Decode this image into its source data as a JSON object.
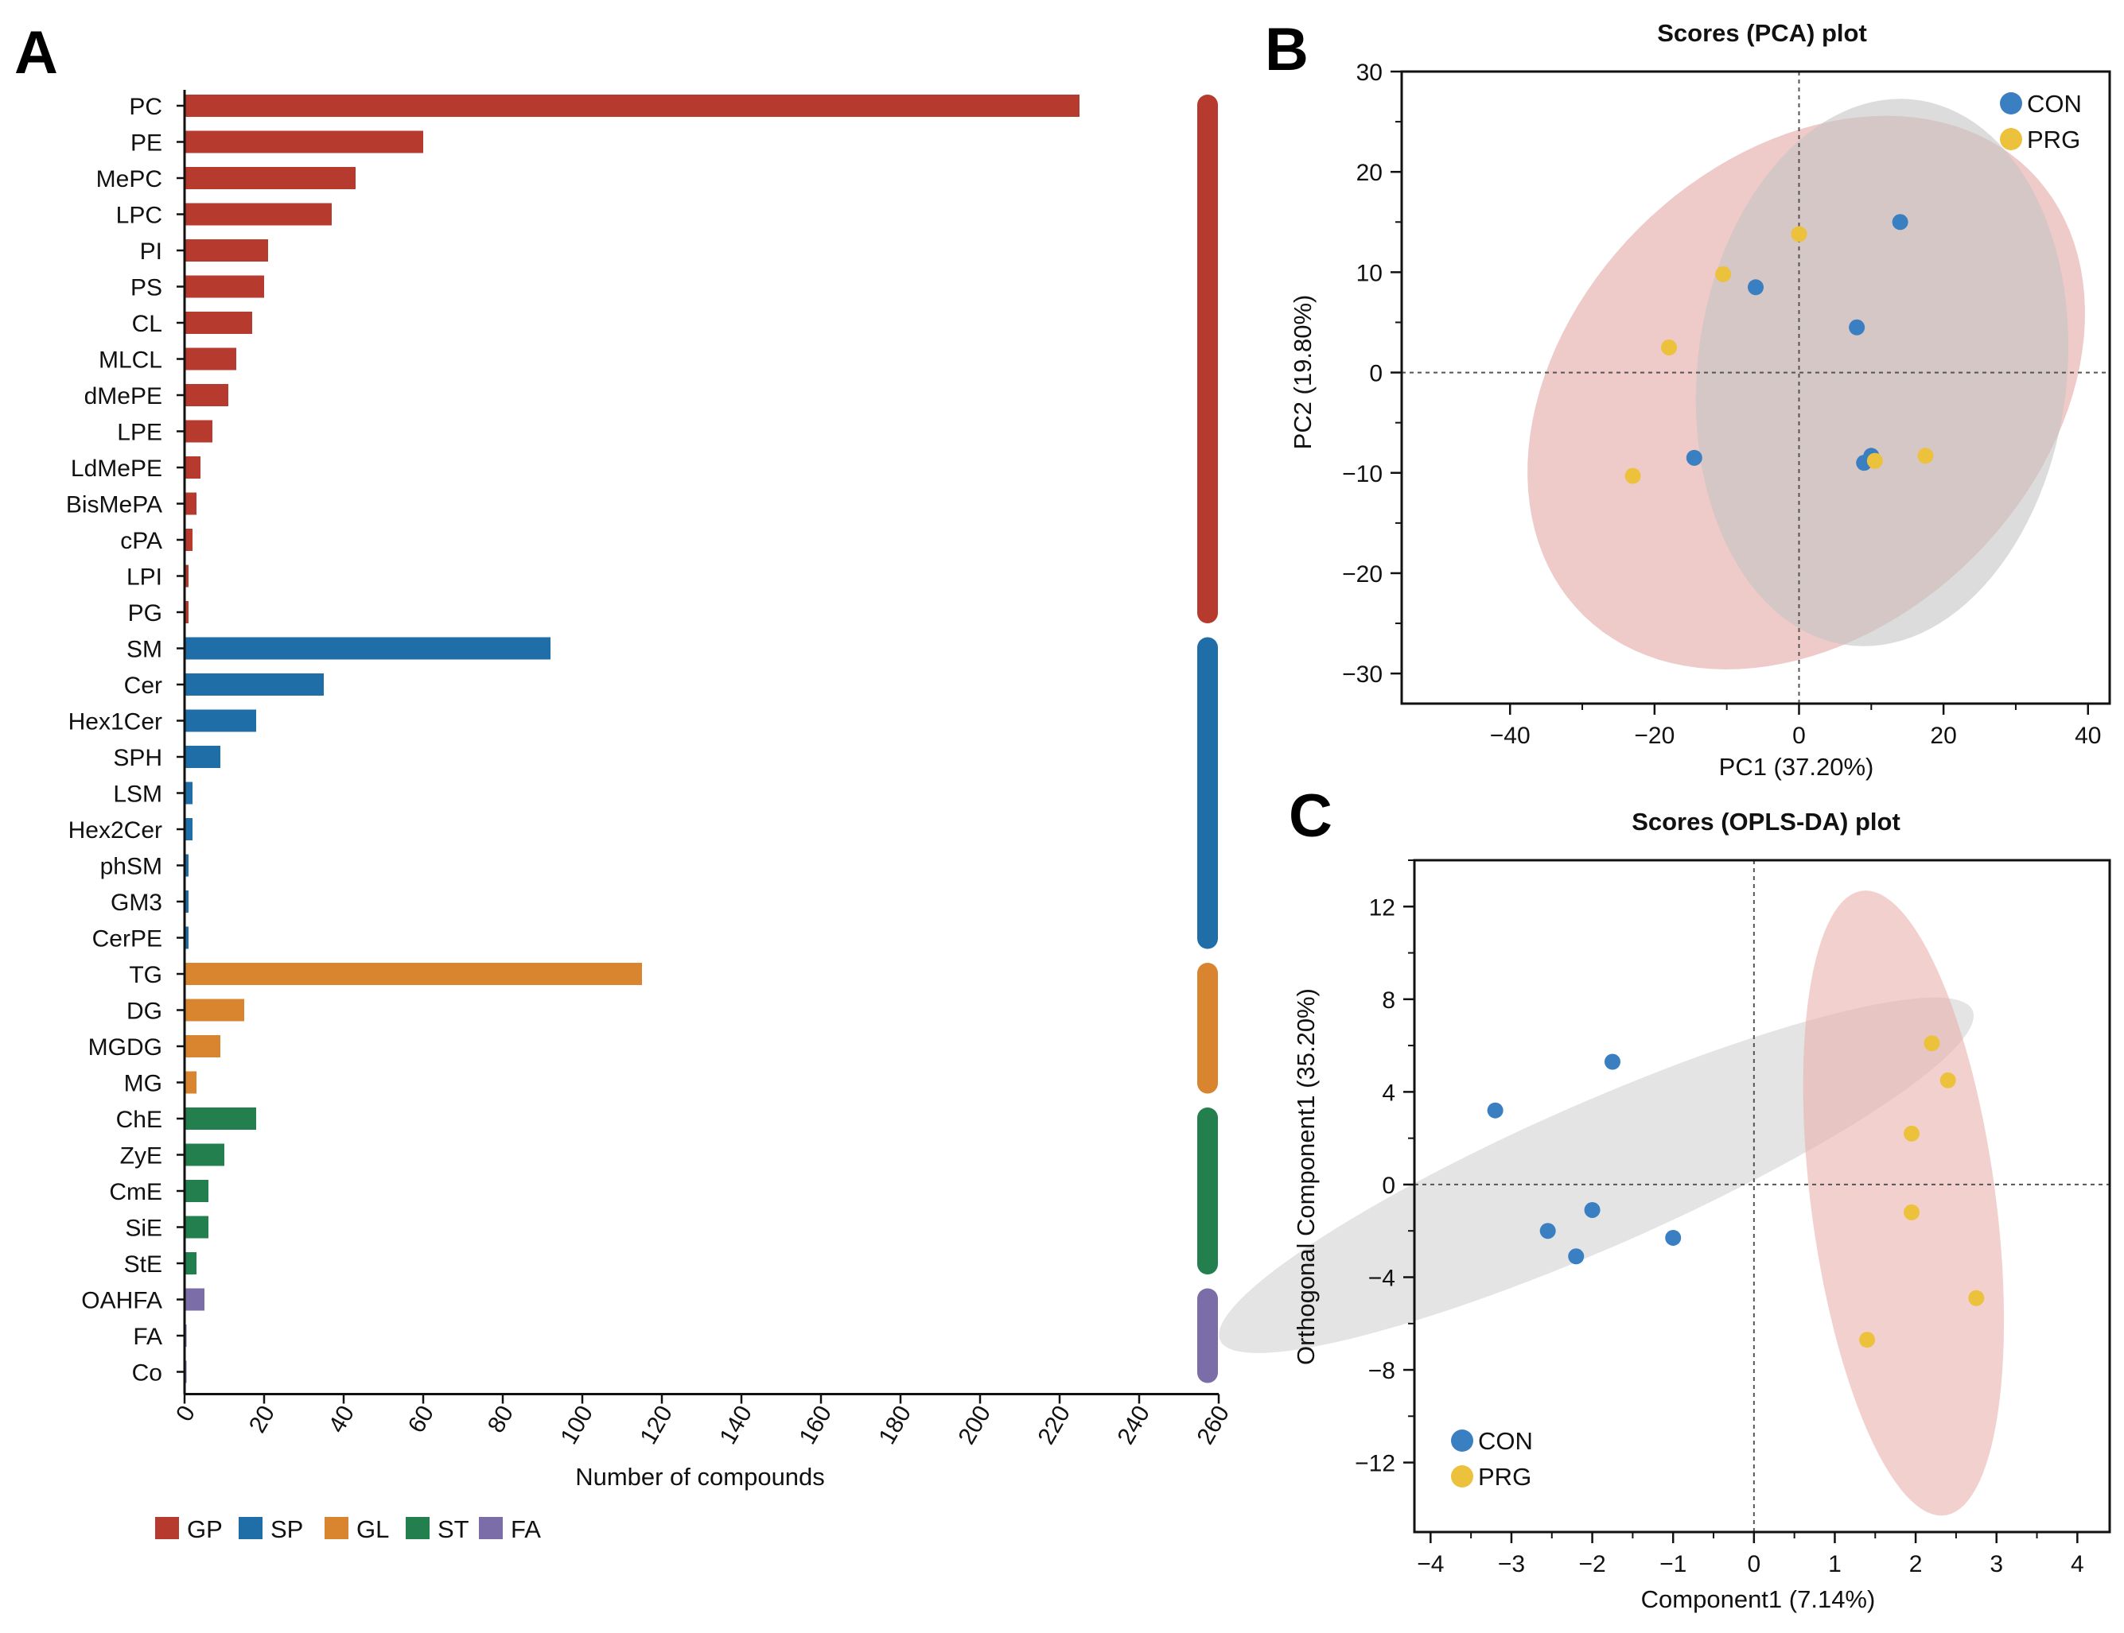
{
  "panels": {
    "a": "A",
    "b": "B",
    "c": "C"
  },
  "chart_data": [
    {
      "id": "A",
      "type": "bar",
      "orientation": "horizontal",
      "xlabel": "Number of compounds",
      "xlim": [
        0,
        260
      ],
      "xticks": [
        0,
        20,
        40,
        60,
        80,
        100,
        120,
        140,
        160,
        180,
        200,
        220,
        240,
        260
      ],
      "categories": [
        "PC",
        "PE",
        "MePC",
        "LPC",
        "PI",
        "PS",
        "CL",
        "MLCL",
        "dMePE",
        "LPE",
        "LdMePE",
        "BisMePA",
        "cPA",
        "LPI",
        "PG",
        "SM",
        "Cer",
        "Hex1Cer",
        "SPH",
        "LSM",
        "Hex2Cer",
        "phSM",
        "GM3",
        "CerPE",
        "TG",
        "DG",
        "MGDG",
        "MG",
        "ChE",
        "ZyE",
        "CmE",
        "SiE",
        "StE",
        "OAHFA",
        "FA",
        "Co"
      ],
      "values": [
        225,
        60,
        43,
        37,
        21,
        20,
        17,
        13,
        11,
        7,
        4,
        3,
        2,
        1,
        1,
        92,
        35,
        18,
        9,
        2,
        2,
        1,
        1,
        1,
        115,
        15,
        9,
        3,
        18,
        10,
        6,
        6,
        3,
        5,
        0.5,
        0.5
      ],
      "groups": [
        "GP",
        "GP",
        "GP",
        "GP",
        "GP",
        "GP",
        "GP",
        "GP",
        "GP",
        "GP",
        "GP",
        "GP",
        "GP",
        "GP",
        "GP",
        "SP",
        "SP",
        "SP",
        "SP",
        "SP",
        "SP",
        "SP",
        "SP",
        "SP",
        "GL",
        "GL",
        "GL",
        "GL",
        "ST",
        "ST",
        "ST",
        "ST",
        "ST",
        "FA",
        "FA",
        "FA"
      ],
      "legend": [
        {
          "key": "GP",
          "label": "GP",
          "color": "#b63a2d"
        },
        {
          "key": "SP",
          "label": "SP",
          "color": "#1f6ea8"
        },
        {
          "key": "GL",
          "label": "GL",
          "color": "#d9842e"
        },
        {
          "key": "ST",
          "label": "ST",
          "color": "#23804e"
        },
        {
          "key": "FA",
          "label": "FA",
          "color": "#7b6ea8"
        }
      ]
    },
    {
      "id": "B",
      "type": "scatter",
      "title": "Scores (PCA) plot",
      "xlabel": "PC1 (37.20%)",
      "ylabel": "PC2 (19.80%)",
      "xlim": [
        -55,
        43
      ],
      "ylim": [
        -33,
        30
      ],
      "xticks": [
        -40,
        -20,
        0,
        20,
        40
      ],
      "yticks": [
        -30,
        -20,
        -10,
        0,
        10,
        20,
        30
      ],
      "series": [
        {
          "name": "CON",
          "color": "#3a7fc1",
          "points": [
            [
              14,
              15
            ],
            [
              -6,
              8.5
            ],
            [
              8,
              4.5
            ],
            [
              -14.5,
              -8.5
            ],
            [
              10,
              -8.3
            ],
            [
              9,
              -9
            ]
          ]
        },
        {
          "name": "PRG",
          "color": "#ecc13b",
          "points": [
            [
              0,
              13.8
            ],
            [
              -10.5,
              9.8
            ],
            [
              -18,
              2.5
            ],
            [
              -23,
              -10.3
            ],
            [
              10.5,
              -8.8
            ],
            [
              17.5,
              -8.3
            ]
          ]
        }
      ],
      "ellipses": [
        {
          "group": "PRG",
          "color": "#e3a7a4",
          "cx": 1,
          "cy": -2,
          "rx": 40,
          "ry": 25.5,
          "angle": 20
        },
        {
          "group": "CON",
          "color": "#c4c4c4",
          "cx": 11.5,
          "cy": 0,
          "rx": 28,
          "ry": 25,
          "angle": 60
        }
      ],
      "legend_position": "top-right"
    },
    {
      "id": "C",
      "type": "scatter",
      "title": "Scores (OPLS-DA) plot",
      "xlabel": "Component1 (7.14%)",
      "ylabel": "Orthogonal Component1 (35.20%)",
      "xlim": [
        -4.2,
        4.4
      ],
      "ylim": [
        -15,
        14
      ],
      "xticks": [
        -4,
        -3,
        -2,
        -1,
        0,
        1,
        2,
        3,
        4
      ],
      "yticks": [
        -12,
        -8,
        -4,
        0,
        4,
        8,
        12
      ],
      "series": [
        {
          "name": "CON",
          "color": "#3a7fc1",
          "points": [
            [
              -1.75,
              5.3
            ],
            [
              -3.2,
              3.2
            ],
            [
              -2,
              -1.1
            ],
            [
              -2.55,
              -2
            ],
            [
              -1,
              -2.3
            ],
            [
              -2.2,
              -3.1
            ]
          ]
        },
        {
          "name": "PRG",
          "color": "#ecc13b",
          "points": [
            [
              2.2,
              6.1
            ],
            [
              2.4,
              4.5
            ],
            [
              1.95,
              2.2
            ],
            [
              1.95,
              -1.2
            ],
            [
              2.75,
              -4.9
            ],
            [
              1.4,
              -6.7
            ]
          ]
        }
      ],
      "ellipses": [
        {
          "group": "CON",
          "color": "#d2d2d2",
          "cx": -1.95,
          "cy": 0.4,
          "rx": 1.8,
          "ry": 8.8,
          "angle": -30
        },
        {
          "group": "PRG",
          "color": "#eab0ad",
          "cx": 1.85,
          "cy": -0.8,
          "rx": 1.15,
          "ry": 13.5,
          "angle": 2
        }
      ],
      "legend_position": "bottom-left"
    }
  ]
}
